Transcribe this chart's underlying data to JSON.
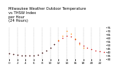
{
  "title": "Milwaukee Weather Outdoor Temperature\nvs THSW Index\nper Hour\n(24 Hours)",
  "hours": [
    0,
    1,
    2,
    3,
    4,
    5,
    6,
    7,
    8,
    9,
    10,
    11,
    12,
    13,
    14,
    15,
    16,
    17,
    18,
    19,
    20,
    21,
    22,
    23
  ],
  "temp": [
    38,
    37,
    36,
    35,
    35,
    35,
    35,
    36,
    39,
    42,
    46,
    51,
    56,
    60,
    63,
    62,
    58,
    53,
    49,
    46,
    44,
    42,
    41,
    40
  ],
  "thsw": [
    null,
    null,
    null,
    null,
    null,
    null,
    null,
    null,
    null,
    null,
    null,
    null,
    57,
    63,
    70,
    66,
    59,
    51,
    46,
    null,
    null,
    null,
    null,
    null
  ],
  "black_dots_hours": [
    0,
    1,
    2,
    3,
    4,
    5,
    6,
    7,
    8,
    9,
    10,
    11
  ],
  "black_dots_vals": [
    38,
    37,
    36,
    35,
    35,
    35,
    35,
    36,
    39,
    42,
    46,
    51
  ],
  "temp_color": "#cc0000",
  "thsw_color": "#ff8800",
  "black_color": "#111111",
  "bg_color": "#ffffff",
  "grid_color": "#999999",
  "ylim": [
    30,
    75
  ],
  "ytick_values": [
    30,
    35,
    40,
    45,
    50,
    55,
    60,
    65,
    70,
    75
  ],
  "ytick_labels": [
    "30",
    "35",
    "40",
    "45",
    "50",
    "55",
    "60",
    "65",
    "70",
    "75"
  ],
  "xlim": [
    -0.5,
    23.5
  ],
  "xtick_values": [
    0,
    2,
    4,
    6,
    8,
    10,
    12,
    14,
    16,
    18,
    20,
    22
  ],
  "xtick_labels": [
    "0",
    "2",
    "4",
    "6",
    "8",
    "10",
    "12",
    "14",
    "16",
    "18",
    "20",
    "22"
  ],
  "vgrid_positions": [
    0,
    2,
    4,
    6,
    8,
    10,
    12,
    14,
    16,
    18,
    20,
    22
  ],
  "title_fontsize": 3.8,
  "tick_fontsize": 3.0,
  "marker_size": 1.2
}
